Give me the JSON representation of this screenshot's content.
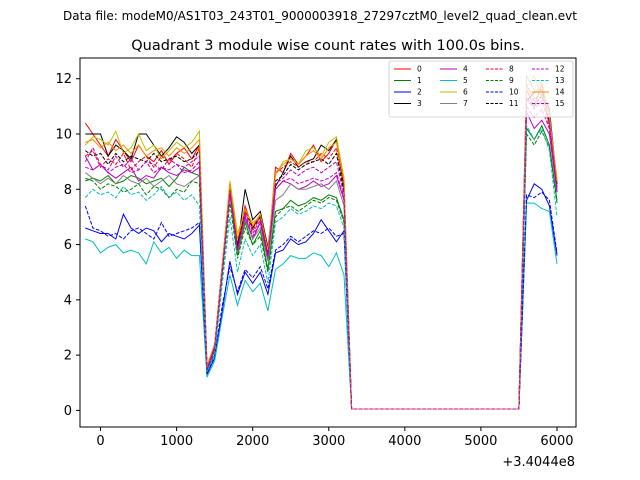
{
  "header": {
    "datafile": "Data file: modeM0/AS1T03_243T01_9000003918_27297cztM0_level2_quad_clean.evt",
    "title": "Quadrant 3 module wise count rates with 100.0s bins.",
    "x_offset": "+3.4044e8"
  },
  "chart_data": {
    "type": "line",
    "title": "Quadrant 3 module wise count rates with 100.0s bins.",
    "xlabel": "",
    "ylabel": "",
    "x_offset_label": "+3.4044e8",
    "xlim": [
      -270,
      6250
    ],
    "ylim": [
      -0.6,
      12.75
    ],
    "xticks": [
      0,
      1000,
      2000,
      3000,
      4000,
      5000,
      6000
    ],
    "xtick_labels": [
      "0",
      "1000",
      "2000",
      "3000",
      "4000",
      "5000",
      "6000"
    ],
    "yticks": [
      0,
      2,
      4,
      6,
      8,
      10,
      12
    ],
    "ytick_labels": [
      "0",
      "2",
      "4",
      "6",
      "8",
      "10",
      "12"
    ],
    "grid": false,
    "legend_position": "top-right",
    "x": [
      -200,
      -100,
      0,
      100,
      200,
      300,
      400,
      500,
      600,
      700,
      800,
      900,
      1000,
      1100,
      1200,
      1300,
      1400,
      1500,
      1600,
      1700,
      1800,
      1900,
      2000,
      2100,
      2200,
      2300,
      2400,
      2500,
      2600,
      2700,
      2800,
      2900,
      3000,
      3100,
      3200,
      3300,
      3400,
      3500,
      3600,
      3700,
      3800,
      3900,
      4000,
      4100,
      4200,
      4300,
      4400,
      4500,
      4600,
      4700,
      4800,
      4900,
      5000,
      5100,
      5200,
      5300,
      5400,
      5500,
      5600,
      5700,
      5800,
      5900,
      6000
    ],
    "series": [
      {
        "name": "0",
        "color": "#ff0000",
        "dash": "solid",
        "values": [
          10.4,
          10.0,
          9.6,
          9.2,
          9.8,
          9.4,
          9.0,
          9.6,
          9.2,
          9.0,
          9.4,
          8.9,
          9.3,
          9.5,
          9.1,
          9.6,
          1.6,
          2.4,
          5.3,
          8.1,
          6.0,
          7.4,
          6.6,
          7.1,
          5.6,
          8.8,
          8.6,
          9.3,
          8.9,
          9.2,
          9.6,
          9.0,
          9.3,
          9.8,
          8.2,
          0.05,
          0.05,
          0.05,
          0.05,
          0.05,
          0.05,
          0.05,
          0.05,
          0.05,
          0.05,
          0.05,
          0.05,
          0.05,
          0.05,
          0.05,
          0.05,
          0.05,
          0.05,
          0.05,
          0.05,
          0.05,
          0.05,
          0.05,
          11.6,
          11.0,
          11.8,
          10.4,
          8.3
        ]
      },
      {
        "name": "1",
        "color": "#008000",
        "dash": "solid",
        "values": [
          8.3,
          8.4,
          8.3,
          8.5,
          8.2,
          8.3,
          8.5,
          8.4,
          8.2,
          8.3,
          8.4,
          8.1,
          8.4,
          8.8,
          8.6,
          8.5,
          1.4,
          2.2,
          5.1,
          7.8,
          5.6,
          6.8,
          6.0,
          6.5,
          5.1,
          7.2,
          7.3,
          7.6,
          7.4,
          7.5,
          7.7,
          7.6,
          7.8,
          7.7,
          6.9,
          0.05,
          0.05,
          0.05,
          0.05,
          0.05,
          0.05,
          0.05,
          0.05,
          0.05,
          0.05,
          0.05,
          0.05,
          0.05,
          0.05,
          0.05,
          0.05,
          0.05,
          0.05,
          0.05,
          0.05,
          0.05,
          0.05,
          0.05,
          10.2,
          9.8,
          10.3,
          9.6,
          7.6
        ]
      },
      {
        "name": "2",
        "color": "#0000ff",
        "dash": "solid",
        "values": [
          6.6,
          6.5,
          6.4,
          6.4,
          6.2,
          7.1,
          6.6,
          6.4,
          6.6,
          6.5,
          6.1,
          6.4,
          6.3,
          6.2,
          6.4,
          6.7,
          1.3,
          1.9,
          3.6,
          5.4,
          4.2,
          5.0,
          4.6,
          5.0,
          4.2,
          5.7,
          5.8,
          6.2,
          6.0,
          6.1,
          6.4,
          6.9,
          6.5,
          6.1,
          6.5,
          0.05,
          0.05,
          0.05,
          0.05,
          0.05,
          0.05,
          0.05,
          0.05,
          0.05,
          0.05,
          0.05,
          0.05,
          0.05,
          0.05,
          0.05,
          0.05,
          0.05,
          0.05,
          0.05,
          0.05,
          0.05,
          0.05,
          0.05,
          7.6,
          8.2,
          8.0,
          7.4,
          5.6
        ]
      },
      {
        "name": "3",
        "color": "#000000",
        "dash": "solid",
        "values": [
          10.0,
          10.0,
          10.0,
          9.2,
          9.6,
          9.4,
          9.1,
          10.0,
          10.0,
          9.6,
          9.2,
          9.5,
          9.9,
          9.7,
          9.3,
          9.6,
          1.5,
          2.3,
          5.1,
          8.0,
          5.9,
          8.0,
          6.9,
          7.2,
          5.9,
          8.1,
          8.6,
          9.2,
          8.8,
          9.0,
          9.1,
          9.6,
          9.4,
          9.8,
          8.0,
          0.05,
          0.05,
          0.05,
          0.05,
          0.05,
          0.05,
          0.05,
          0.05,
          0.05,
          0.05,
          0.05,
          0.05,
          0.05,
          0.05,
          0.05,
          0.05,
          0.05,
          0.05,
          0.05,
          0.05,
          0.05,
          0.05,
          0.05,
          11.2,
          11.5,
          11.6,
          10.9,
          8.2
        ]
      },
      {
        "name": "4",
        "color": "#bf00bf",
        "dash": "solid",
        "values": [
          9.2,
          8.7,
          8.9,
          8.6,
          8.4,
          8.6,
          8.8,
          8.3,
          8.5,
          8.4,
          8.8,
          8.6,
          8.5,
          8.7,
          8.6,
          8.8,
          1.5,
          2.2,
          5.2,
          7.9,
          5.8,
          7.0,
          6.2,
          6.8,
          5.5,
          8.0,
          8.3,
          8.2,
          8.0,
          8.1,
          8.3,
          8.1,
          8.2,
          8.5,
          7.6,
          0.05,
          0.05,
          0.05,
          0.05,
          0.05,
          0.05,
          0.05,
          0.05,
          0.05,
          0.05,
          0.05,
          0.05,
          0.05,
          0.05,
          0.05,
          0.05,
          0.05,
          0.05,
          0.05,
          0.05,
          0.05,
          0.05,
          0.05,
          10.8,
          10.2,
          10.5,
          10.0,
          7.9
        ]
      },
      {
        "name": "5",
        "color": "#00bfbf",
        "dash": "solid",
        "values": [
          6.2,
          6.1,
          5.7,
          5.9,
          6.0,
          5.7,
          5.8,
          5.7,
          5.3,
          6.1,
          5.7,
          5.9,
          5.5,
          5.8,
          5.6,
          5.6,
          1.2,
          1.8,
          3.4,
          4.9,
          3.8,
          4.7,
          4.3,
          4.6,
          3.6,
          5.1,
          5.3,
          5.6,
          5.5,
          5.5,
          5.7,
          5.6,
          5.2,
          5.7,
          4.9,
          0.05,
          0.05,
          0.05,
          0.05,
          0.05,
          0.05,
          0.05,
          0.05,
          0.05,
          0.05,
          0.05,
          0.05,
          0.05,
          0.05,
          0.05,
          0.05,
          0.05,
          0.05,
          0.05,
          0.05,
          0.05,
          0.05,
          0.05,
          7.5,
          7.5,
          7.3,
          7.2,
          5.3
        ]
      },
      {
        "name": "6",
        "color": "#bfbf00",
        "dash": "solid",
        "values": [
          9.6,
          9.9,
          9.8,
          9.6,
          10.1,
          9.3,
          9.5,
          10.0,
          9.4,
          9.6,
          9.1,
          9.4,
          9.7,
          9.5,
          9.7,
          10.1,
          1.6,
          2.4,
          5.2,
          8.3,
          6.4,
          7.2,
          6.8,
          7.0,
          5.7,
          8.5,
          9.0,
          9.1,
          8.9,
          9.4,
          9.5,
          9.2,
          9.7,
          9.9,
          8.4,
          0.05,
          0.05,
          0.05,
          0.05,
          0.05,
          0.05,
          0.05,
          0.05,
          0.05,
          0.05,
          0.05,
          0.05,
          0.05,
          0.05,
          0.05,
          0.05,
          0.05,
          0.05,
          0.05,
          0.05,
          0.05,
          0.05,
          0.05,
          11.7,
          11.4,
          11.9,
          10.6,
          8.4
        ]
      },
      {
        "name": "7",
        "color": "#808080",
        "dash": "solid",
        "values": [
          8.6,
          8.4,
          8.2,
          8.4,
          8.2,
          8.5,
          8.3,
          8.2,
          8.4,
          8.1,
          8.3,
          8.5,
          8.2,
          8.1,
          8.3,
          8.5,
          1.5,
          2.2,
          5.0,
          7.8,
          5.7,
          6.9,
          6.2,
          6.6,
          5.4,
          7.6,
          7.8,
          8.2,
          8.0,
          8.0,
          8.1,
          8.2,
          8.0,
          8.3,
          7.4,
          0.05,
          0.05,
          0.05,
          0.05,
          0.05,
          0.05,
          0.05,
          0.05,
          0.05,
          0.05,
          0.05,
          0.05,
          0.05,
          0.05,
          0.05,
          0.05,
          0.05,
          0.05,
          0.05,
          0.05,
          0.05,
          0.05,
          0.05,
          12.1,
          11.6,
          11.5,
          10.8,
          8.1
        ]
      },
      {
        "name": "8",
        "color": "#ff0000",
        "dash": "dashed",
        "values": [
          9.2,
          9.4,
          8.8,
          9.1,
          8.9,
          9.3,
          8.7,
          9.0,
          9.2,
          8.8,
          9.2,
          9.0,
          9.3,
          9.1,
          8.8,
          9.5,
          1.5,
          2.3,
          5.2,
          8.1,
          5.8,
          7.2,
          6.5,
          7.0,
          5.6,
          8.6,
          8.8,
          9.0,
          8.8,
          9.0,
          9.0,
          9.3,
          9.1,
          9.5,
          8.1,
          0.05,
          0.05,
          0.05,
          0.05,
          0.05,
          0.05,
          0.05,
          0.05,
          0.05,
          0.05,
          0.05,
          0.05,
          0.05,
          0.05,
          0.05,
          0.05,
          0.05,
          0.05,
          0.05,
          0.05,
          0.05,
          0.05,
          0.05,
          11.8,
          11.2,
          11.6,
          10.2,
          8.0
        ]
      },
      {
        "name": "9",
        "color": "#008000",
        "dash": "dashed",
        "values": [
          8.4,
          8.3,
          8.0,
          8.2,
          8.1,
          7.9,
          8.0,
          8.2,
          7.8,
          8.1,
          8.0,
          7.7,
          8.0,
          7.9,
          8.3,
          8.2,
          1.4,
          2.1,
          4.9,
          7.5,
          5.5,
          6.6,
          6.0,
          6.3,
          5.0,
          7.0,
          7.3,
          7.4,
          7.2,
          7.4,
          7.6,
          7.5,
          7.7,
          7.6,
          6.8,
          0.05,
          0.05,
          0.05,
          0.05,
          0.05,
          0.05,
          0.05,
          0.05,
          0.05,
          0.05,
          0.05,
          0.05,
          0.05,
          0.05,
          0.05,
          0.05,
          0.05,
          0.05,
          0.05,
          0.05,
          0.05,
          0.05,
          0.05,
          10.0,
          9.6,
          10.1,
          9.5,
          7.5
        ]
      },
      {
        "name": "10",
        "color": "#0000ff",
        "dash": "dashed",
        "values": [
          7.4,
          6.6,
          6.5,
          6.3,
          6.4,
          6.2,
          6.5,
          6.6,
          6.4,
          6.2,
          6.8,
          6.3,
          6.4,
          6.5,
          6.6,
          6.8,
          1.3,
          2.0,
          3.8,
          5.2,
          4.3,
          5.1,
          4.8,
          5.2,
          4.4,
          5.8,
          6.0,
          6.3,
          6.1,
          6.3,
          6.5,
          6.4,
          6.6,
          6.3,
          6.4,
          0.05,
          0.05,
          0.05,
          0.05,
          0.05,
          0.05,
          0.05,
          0.05,
          0.05,
          0.05,
          0.05,
          0.05,
          0.05,
          0.05,
          0.05,
          0.05,
          0.05,
          0.05,
          0.05,
          0.05,
          0.05,
          0.05,
          0.05,
          7.8,
          7.7,
          7.9,
          7.6,
          5.7
        ]
      },
      {
        "name": "11",
        "color": "#000000",
        "dash": "dashed",
        "values": [
          9.4,
          9.2,
          9.3,
          8.9,
          9.3,
          9.0,
          9.2,
          9.1,
          9.0,
          9.3,
          9.0,
          9.1,
          9.2,
          9.0,
          9.1,
          9.4,
          1.5,
          2.3,
          5.1,
          8.0,
          5.8,
          7.3,
          6.6,
          7.0,
          5.7,
          8.3,
          8.5,
          8.9,
          8.7,
          8.9,
          9.0,
          9.1,
          8.9,
          9.3,
          7.9,
          0.05,
          0.05,
          0.05,
          0.05,
          0.05,
          0.05,
          0.05,
          0.05,
          0.05,
          0.05,
          0.05,
          0.05,
          0.05,
          0.05,
          0.05,
          0.05,
          0.05,
          0.05,
          0.05,
          0.05,
          0.05,
          0.05,
          0.05,
          11.3,
          11.0,
          11.4,
          10.5,
          8.1
        ]
      },
      {
        "name": "12",
        "color": "#bf00bf",
        "dash": "dashed",
        "values": [
          8.8,
          8.7,
          8.9,
          8.6,
          8.8,
          8.9,
          8.6,
          8.7,
          9.0,
          8.6,
          8.8,
          8.7,
          8.9,
          8.6,
          8.7,
          9.0,
          1.5,
          2.2,
          5.1,
          7.9,
          5.8,
          7.0,
          6.3,
          6.8,
          5.5,
          8.0,
          8.3,
          8.4,
          8.2,
          8.3,
          8.4,
          8.3,
          8.4,
          8.6,
          7.7,
          0.05,
          0.05,
          0.05,
          0.05,
          0.05,
          0.05,
          0.05,
          0.05,
          0.05,
          0.05,
          0.05,
          0.05,
          0.05,
          0.05,
          0.05,
          0.05,
          0.05,
          0.05,
          0.05,
          0.05,
          0.05,
          0.05,
          0.05,
          11.0,
          10.6,
          10.9,
          10.2,
          7.9
        ]
      },
      {
        "name": "13",
        "color": "#00bfbf",
        "dash": "dashed",
        "values": [
          7.7,
          8.0,
          7.8,
          7.9,
          7.7,
          8.1,
          7.8,
          7.9,
          7.6,
          7.8,
          8.1,
          7.7,
          7.9,
          7.6,
          7.8,
          7.4,
          1.4,
          2.0,
          4.6,
          7.0,
          5.0,
          6.2,
          5.6,
          6.0,
          4.6,
          6.8,
          7.0,
          7.3,
          7.1,
          7.2,
          7.4,
          7.3,
          7.5,
          7.4,
          6.6,
          0.05,
          0.05,
          0.05,
          0.05,
          0.05,
          0.05,
          0.05,
          0.05,
          0.05,
          0.05,
          0.05,
          0.05,
          0.05,
          0.05,
          0.05,
          0.05,
          0.05,
          0.05,
          0.05,
          0.05,
          0.05,
          0.05,
          0.05,
          10.3,
          9.8,
          10.2,
          9.4,
          7.0
        ]
      },
      {
        "name": "14",
        "color": "#ff8c00",
        "dash": "solid",
        "values": [
          9.7,
          9.8,
          9.5,
          9.7,
          9.4,
          9.6,
          9.3,
          9.6,
          9.2,
          9.4,
          9.5,
          9.2,
          9.5,
          9.3,
          9.5,
          9.8,
          1.6,
          2.4,
          5.3,
          8.2,
          6.2,
          7.3,
          6.7,
          7.1,
          5.8,
          8.6,
          8.9,
          9.1,
          8.9,
          9.2,
          9.4,
          9.1,
          9.5,
          9.7,
          8.3,
          0.05,
          0.05,
          0.05,
          0.05,
          0.05,
          0.05,
          0.05,
          0.05,
          0.05,
          0.05,
          0.05,
          0.05,
          0.05,
          0.05,
          0.05,
          0.05,
          0.05,
          0.05,
          0.05,
          0.05,
          0.05,
          0.05,
          0.05,
          11.7,
          12.1,
          11.3,
          10.6,
          8.3
        ]
      },
      {
        "name": "15",
        "color": "#bf00bf",
        "dash": "dashed",
        "values": [
          9.0,
          9.5,
          8.9,
          8.7,
          9.2,
          8.8,
          9.1,
          8.7,
          9.0,
          8.9,
          8.7,
          9.1,
          8.9,
          8.8,
          9.0,
          9.2,
          1.5,
          2.3,
          5.1,
          7.9,
          5.8,
          7.1,
          6.4,
          6.9,
          5.6,
          8.2,
          8.4,
          8.7,
          8.5,
          8.7,
          8.8,
          8.6,
          8.8,
          9.0,
          7.8,
          0.05,
          0.05,
          0.05,
          0.05,
          0.05,
          0.05,
          0.05,
          0.05,
          0.05,
          0.05,
          0.05,
          0.05,
          0.05,
          0.05,
          0.05,
          0.05,
          0.05,
          0.05,
          0.05,
          0.05,
          0.05,
          0.05,
          0.05,
          11.3,
          10.9,
          11.2,
          10.4,
          8.0
        ]
      }
    ]
  }
}
